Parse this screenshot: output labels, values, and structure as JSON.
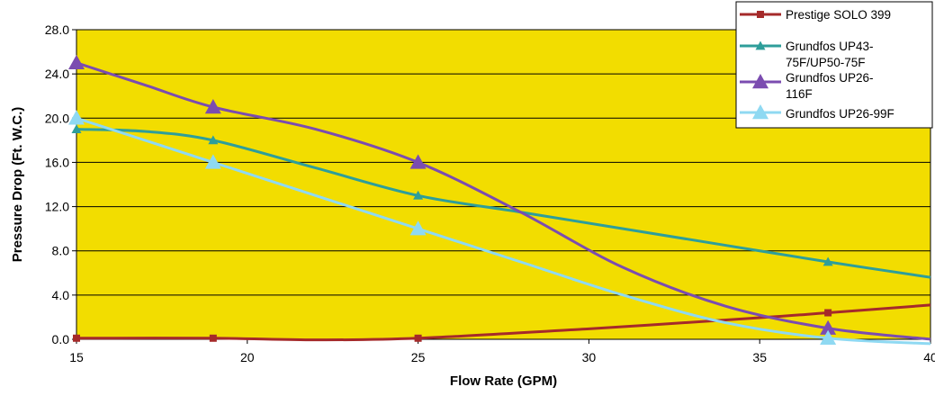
{
  "chart_data": {
    "type": "line",
    "title": "",
    "xlabel": "Flow Rate (GPM)",
    "ylabel": "Pressure Drop (Ft. W.C.)",
    "xlim": [
      15,
      40
    ],
    "ylim": [
      0,
      28
    ],
    "x_ticks": [
      "15",
      "20",
      "25",
      "30",
      "35",
      "40"
    ],
    "y_ticks": [
      "0.0",
      "4.0",
      "8.0",
      "12.0",
      "16.0",
      "20.0",
      "24.0",
      "28.0"
    ],
    "plot_background": "#F2DD00",
    "grid": "horizontal",
    "legend_position": "top-right",
    "series": [
      {
        "name": "Prestige SOLO 399",
        "color": "#A52A2A",
        "marker": "square",
        "points": [
          [
            15,
            0.1
          ],
          [
            19,
            0.1
          ],
          [
            25,
            0.1
          ],
          [
            37,
            2.4
          ]
        ],
        "curve": [
          [
            15,
            0.1
          ],
          [
            19,
            0.1
          ],
          [
            22,
            -0.05
          ],
          [
            25,
            0.1
          ],
          [
            30,
            0.95
          ],
          [
            35,
            1.95
          ],
          [
            37,
            2.4
          ],
          [
            40,
            3.1
          ]
        ]
      },
      {
        "name": "Grundfos UP43-75F/UP50-75F",
        "legend_lines": [
          "Grundfos UP43-",
          "75F/UP50-75F"
        ],
        "color": "#2E9E9A",
        "marker": "triangle-small",
        "points": [
          [
            15,
            19
          ],
          [
            19,
            18
          ],
          [
            25,
            13
          ],
          [
            37,
            7
          ]
        ],
        "curve": [
          [
            15,
            19
          ],
          [
            17,
            18.8
          ],
          [
            19,
            18
          ],
          [
            22,
            15.5
          ],
          [
            25,
            13
          ],
          [
            28,
            11.5
          ],
          [
            31,
            10
          ],
          [
            34,
            8.5
          ],
          [
            37,
            7
          ],
          [
            40,
            5.6
          ]
        ]
      },
      {
        "name": "Grundfos UP26-116F",
        "legend_lines": [
          "Grundfos UP26-",
          "116F"
        ],
        "color": "#7B4CB0",
        "marker": "triangle-large",
        "points": [
          [
            15,
            25
          ],
          [
            19,
            21
          ],
          [
            25,
            16
          ],
          [
            37,
            1
          ]
        ],
        "curve": [
          [
            15,
            25
          ],
          [
            17,
            23
          ],
          [
            19,
            21
          ],
          [
            22,
            19
          ],
          [
            25,
            16
          ],
          [
            28,
            11.5
          ],
          [
            31,
            6.5
          ],
          [
            34,
            3
          ],
          [
            37,
            1
          ],
          [
            40,
            0
          ]
        ]
      },
      {
        "name": "Grundfos UP26-99F",
        "color": "#8FD9F2",
        "marker": "triangle-large",
        "points": [
          [
            15,
            20
          ],
          [
            19,
            16
          ],
          [
            25,
            10
          ],
          [
            37,
            0.1
          ]
        ],
        "curve": [
          [
            15,
            20
          ],
          [
            17,
            18
          ],
          [
            19,
            16
          ],
          [
            22,
            13
          ],
          [
            25,
            10
          ],
          [
            28,
            7
          ],
          [
            31,
            4
          ],
          [
            34,
            1.5
          ],
          [
            37,
            0.1
          ],
          [
            40,
            -0.4
          ]
        ]
      }
    ]
  }
}
